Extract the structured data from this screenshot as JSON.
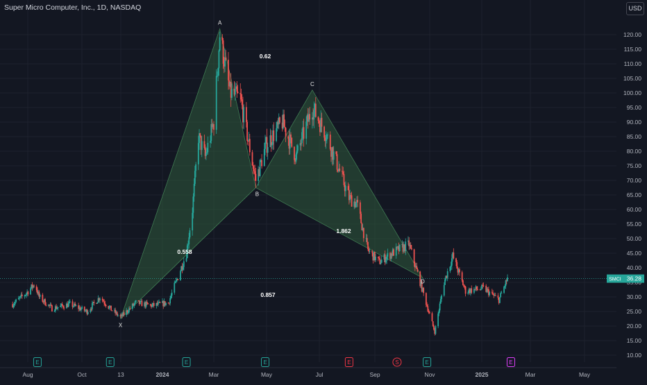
{
  "header": {
    "title": "Super Micro Computer, Inc., 1D, NASDAQ",
    "currency": "USD"
  },
  "colors": {
    "background": "#131722",
    "up": "#26a69a",
    "down": "#ef5350",
    "harmonic_fill": "#2f5a3c",
    "price_label_bg": "#26a69a",
    "dividend": "#f23645",
    "split_marker": "#e040fb"
  },
  "price_axis": {
    "ticks": [
      "120.00",
      "115.00",
      "110.00",
      "105.00",
      "100.00",
      "95.00",
      "90.00",
      "85.00",
      "80.00",
      "75.00",
      "70.00",
      "65.00",
      "60.00",
      "55.00",
      "50.00",
      "45.00",
      "40.00",
      "35.00",
      "30.00",
      "25.00",
      "20.00",
      "15.00",
      "10.00"
    ]
  },
  "time_axis": {
    "labels": [
      "Aug",
      "Oct",
      "13",
      "2024",
      "Mar",
      "May",
      "Jul",
      "Sep",
      "Nov",
      "2025",
      "Mar",
      "May"
    ]
  },
  "last_price": {
    "ticker": "SMCI",
    "value": "36.28"
  },
  "pattern": {
    "points": [
      {
        "label": "X",
        "date": "2023-11-13",
        "price": 22.5
      },
      {
        "label": "A",
        "date": "2024-03-08",
        "price": 122.0
      },
      {
        "label": "B",
        "date": "2024-04-19",
        "price": 67.5
      },
      {
        "label": "C",
        "date": "2024-06-24",
        "price": 101.0
      },
      {
        "label": "D",
        "date": "2024-10-31",
        "price": 36.5
      }
    ],
    "ratios": [
      {
        "text": "0.62"
      },
      {
        "text": "0.558"
      },
      {
        "text": "1.862"
      },
      {
        "text": "0.857"
      }
    ]
  },
  "events": [
    {
      "type": "earnings",
      "glyph": "E",
      "date": "2023-08-08"
    },
    {
      "type": "earnings",
      "glyph": "E",
      "date": "2023-11-01"
    },
    {
      "type": "earnings",
      "glyph": "E",
      "date": "2024-01-29"
    },
    {
      "type": "earnings",
      "glyph": "E",
      "date": "2024-04-30"
    },
    {
      "type": "earnings",
      "glyph": "E",
      "date": "2024-08-06"
    },
    {
      "type": "split",
      "glyph": "S",
      "date": "2024-10-01"
    },
    {
      "type": "earnings",
      "glyph": "E",
      "date": "2024-11-05"
    },
    {
      "type": "earnings",
      "glyph": "E",
      "date": "2025-02-11"
    }
  ],
  "chart_data": {
    "type": "candlestick",
    "ticker": "SMCI",
    "interval": "1D",
    "ylim": [
      7.5,
      126
    ],
    "close_series": [
      {
        "date": "2023-07-10",
        "close": 27.5
      },
      {
        "date": "2023-07-25",
        "close": 31.0
      },
      {
        "date": "2023-08-05",
        "close": 34.5
      },
      {
        "date": "2023-08-10",
        "close": 30.0
      },
      {
        "date": "2023-08-25",
        "close": 26.0
      },
      {
        "date": "2023-09-15",
        "close": 27.5
      },
      {
        "date": "2023-10-05",
        "close": 25.0
      },
      {
        "date": "2023-10-20",
        "close": 30.0
      },
      {
        "date": "2023-11-01",
        "close": 26.0
      },
      {
        "date": "2023-11-13",
        "close": 23.0
      },
      {
        "date": "2023-12-01",
        "close": 28.0
      },
      {
        "date": "2023-12-20",
        "close": 27.0
      },
      {
        "date": "2024-01-08",
        "close": 28.0
      },
      {
        "date": "2024-01-18",
        "close": 36.0
      },
      {
        "date": "2024-01-29",
        "close": 45.0
      },
      {
        "date": "2024-02-05",
        "close": 60.0
      },
      {
        "date": "2024-02-12",
        "close": 85.0
      },
      {
        "date": "2024-02-20",
        "close": 78.0
      },
      {
        "date": "2024-03-01",
        "close": 90.0
      },
      {
        "date": "2024-03-08",
        "close": 120.0
      },
      {
        "date": "2024-03-20",
        "close": 100.0
      },
      {
        "date": "2024-04-01",
        "close": 98.0
      },
      {
        "date": "2024-04-19",
        "close": 70.0
      },
      {
        "date": "2024-05-01",
        "close": 82.0
      },
      {
        "date": "2024-05-20",
        "close": 90.0
      },
      {
        "date": "2024-06-05",
        "close": 78.0
      },
      {
        "date": "2024-06-24",
        "close": 95.0
      },
      {
        "date": "2024-07-10",
        "close": 86.0
      },
      {
        "date": "2024-07-25",
        "close": 74.0
      },
      {
        "date": "2024-08-06",
        "close": 64.0
      },
      {
        "date": "2024-08-15",
        "close": 62.0
      },
      {
        "date": "2024-08-28",
        "close": 46.0
      },
      {
        "date": "2024-09-10",
        "close": 42.0
      },
      {
        "date": "2024-09-25",
        "close": 45.0
      },
      {
        "date": "2024-10-15",
        "close": 48.0
      },
      {
        "date": "2024-10-31",
        "close": 32.0
      },
      {
        "date": "2024-11-14",
        "close": 18.0
      },
      {
        "date": "2024-11-25",
        "close": 35.0
      },
      {
        "date": "2024-12-05",
        "close": 44.0
      },
      {
        "date": "2024-12-20",
        "close": 32.0
      },
      {
        "date": "2025-01-10",
        "close": 33.0
      },
      {
        "date": "2025-01-28",
        "close": 29.0
      },
      {
        "date": "2025-02-07",
        "close": 36.28
      }
    ]
  }
}
